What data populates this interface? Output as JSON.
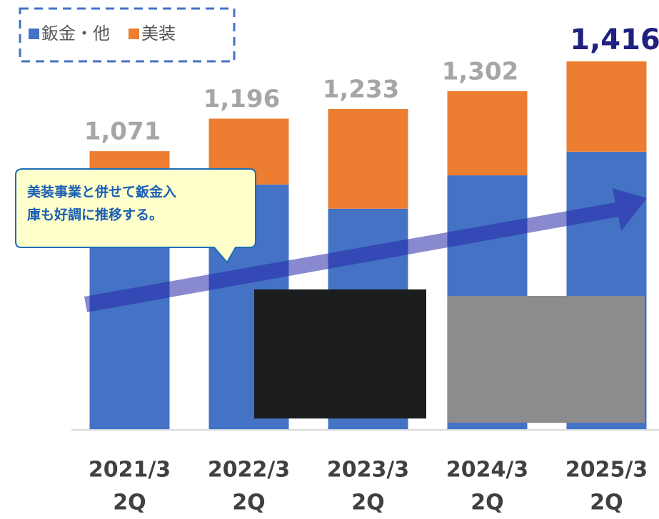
{
  "chart_data": {
    "type": "stacked-bar",
    "categories": [
      "2021/3",
      "2022/3",
      "2023/3",
      "2024/3",
      "2025/3"
    ],
    "category_sublabels": [
      "2Q",
      "2Q",
      "2Q",
      "2Q",
      "2Q"
    ],
    "series": [
      {
        "name": "鈑金・他",
        "color": "#4472c4",
        "values": [
          850,
          943,
          850,
          978,
          1069
        ]
      },
      {
        "name": "美装",
        "color": "#ed7d31",
        "values": [
          221,
          253,
          383,
          324,
          347
        ]
      }
    ],
    "totals": [
      1071,
      1196,
      1233,
      1302,
      1416
    ],
    "total_labels": [
      "1,071",
      "1,196",
      "1,233",
      "1,302",
      "1,416"
    ],
    "ylim": [
      0,
      1500
    ],
    "annotation": [
      "美装事業と併せて鈑金入",
      "庫も好調に推移する。"
    ]
  }
}
